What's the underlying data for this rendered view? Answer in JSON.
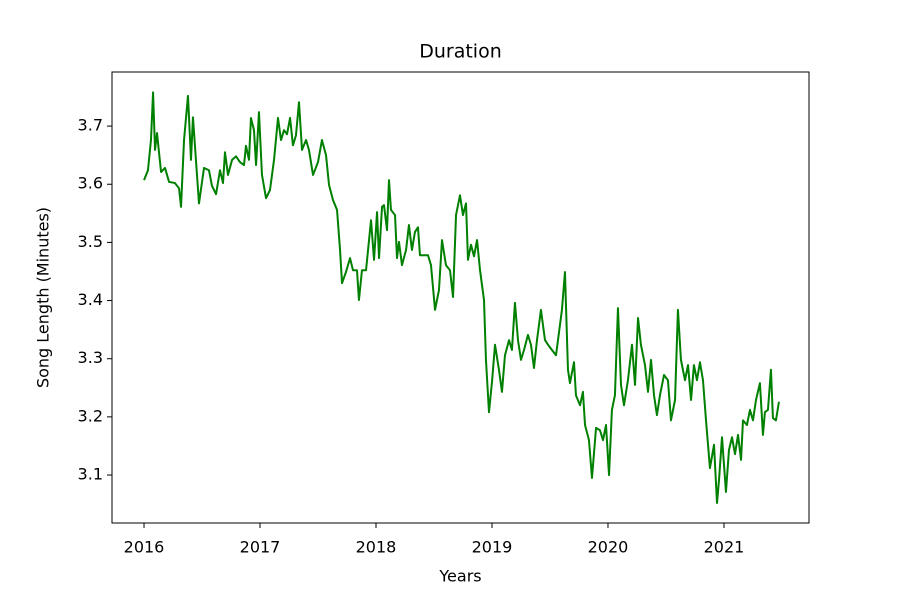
{
  "chart_data": {
    "type": "line",
    "title": "Duration",
    "x_label": "Years",
    "y_label": "Song Length (Minutes)",
    "color": "#008000",
    "x": [
      2016.0,
      2016.034,
      2016.06,
      2016.078,
      2016.095,
      2016.112,
      2016.147,
      2016.181,
      2016.216,
      2016.267,
      2016.302,
      2016.319,
      2016.345,
      2016.379,
      2016.405,
      2016.422,
      2016.474,
      2016.517,
      2016.56,
      2016.586,
      2016.621,
      2016.655,
      2016.681,
      2016.698,
      2016.724,
      2016.759,
      2016.793,
      2016.828,
      2016.862,
      2016.879,
      2016.905,
      2016.922,
      2016.948,
      2016.966,
      2016.991,
      2017.017,
      2017.052,
      2017.086,
      2017.121,
      2017.155,
      2017.181,
      2017.207,
      2017.233,
      2017.259,
      2017.284,
      2017.31,
      2017.336,
      2017.362,
      2017.397,
      2017.422,
      2017.457,
      2017.5,
      2017.534,
      2017.569,
      2017.595,
      2017.629,
      2017.664,
      2017.69,
      2017.707,
      2017.741,
      2017.776,
      2017.802,
      2017.836,
      2017.853,
      2017.879,
      2017.914,
      2017.957,
      2017.983,
      2018.009,
      2018.026,
      2018.052,
      2018.069,
      2018.095,
      2018.112,
      2018.129,
      2018.164,
      2018.181,
      2018.198,
      2018.224,
      2018.259,
      2018.284,
      2018.31,
      2018.336,
      2018.362,
      2018.379,
      2018.414,
      2018.448,
      2018.474,
      2018.509,
      2018.543,
      2018.569,
      2018.603,
      2018.638,
      2018.664,
      2018.69,
      2018.724,
      2018.75,
      2018.776,
      2018.793,
      2018.819,
      2018.845,
      2018.871,
      2018.897,
      2018.931,
      2018.948,
      2018.974,
      2019.0,
      2019.026,
      2019.06,
      2019.086,
      2019.112,
      2019.147,
      2019.172,
      2019.198,
      2019.224,
      2019.25,
      2019.276,
      2019.31,
      2019.336,
      2019.362,
      2019.388,
      2019.422,
      2019.457,
      2019.483,
      2019.517,
      2019.552,
      2019.578,
      2019.603,
      2019.629,
      2019.655,
      2019.672,
      2019.707,
      2019.724,
      2019.759,
      2019.784,
      2019.802,
      2019.836,
      2019.862,
      2019.897,
      2019.931,
      2019.957,
      2019.983,
      2020.009,
      2020.034,
      2020.06,
      2020.086,
      2020.112,
      2020.138,
      2020.172,
      2020.207,
      2020.233,
      2020.259,
      2020.284,
      2020.319,
      2020.345,
      2020.371,
      2020.397,
      2020.422,
      2020.448,
      2020.483,
      2020.517,
      2020.543,
      2020.578,
      2020.603,
      2020.629,
      2020.664,
      2020.69,
      2020.716,
      2020.741,
      2020.767,
      2020.793,
      2020.819,
      2020.845,
      2020.879,
      2020.914,
      2020.94,
      2020.957,
      2020.983,
      2021.017,
      2021.043,
      2021.069,
      2021.095,
      2021.121,
      2021.147,
      2021.164,
      2021.198,
      2021.224,
      2021.25,
      2021.276,
      2021.31,
      2021.336,
      2021.353,
      2021.379,
      2021.405,
      2021.422,
      2021.448,
      2021.474
    ],
    "values": [
      3.607,
      3.624,
      3.676,
      3.758,
      3.659,
      3.688,
      3.621,
      3.628,
      3.604,
      3.602,
      3.593,
      3.561,
      3.676,
      3.752,
      3.642,
      3.715,
      3.567,
      3.628,
      3.624,
      3.597,
      3.583,
      3.624,
      3.602,
      3.655,
      3.616,
      3.642,
      3.648,
      3.638,
      3.633,
      3.666,
      3.642,
      3.714,
      3.693,
      3.633,
      3.724,
      3.616,
      3.576,
      3.59,
      3.642,
      3.714,
      3.676,
      3.693,
      3.686,
      3.714,
      3.667,
      3.684,
      3.741,
      3.659,
      3.676,
      3.659,
      3.616,
      3.638,
      3.676,
      3.65,
      3.599,
      3.573,
      3.556,
      3.487,
      3.43,
      3.449,
      3.473,
      3.452,
      3.452,
      3.401,
      3.452,
      3.452,
      3.538,
      3.47,
      3.552,
      3.473,
      3.561,
      3.564,
      3.521,
      3.607,
      3.556,
      3.547,
      3.473,
      3.501,
      3.461,
      3.487,
      3.53,
      3.487,
      3.518,
      3.526,
      3.478,
      3.478,
      3.478,
      3.461,
      3.384,
      3.418,
      3.504,
      3.461,
      3.452,
      3.406,
      3.547,
      3.581,
      3.547,
      3.567,
      3.47,
      3.496,
      3.476,
      3.504,
      3.452,
      3.401,
      3.298,
      3.208,
      3.26,
      3.324,
      3.281,
      3.243,
      3.306,
      3.332,
      3.315,
      3.396,
      3.332,
      3.298,
      3.315,
      3.341,
      3.324,
      3.284,
      3.332,
      3.384,
      3.332,
      3.324,
      3.315,
      3.306,
      3.346,
      3.384,
      3.449,
      3.281,
      3.258,
      3.294,
      3.237,
      3.22,
      3.243,
      3.186,
      3.16,
      3.095,
      3.181,
      3.177,
      3.16,
      3.186,
      3.1,
      3.212,
      3.237,
      3.387,
      3.255,
      3.22,
      3.263,
      3.324,
      3.255,
      3.37,
      3.324,
      3.289,
      3.243,
      3.298,
      3.237,
      3.203,
      3.237,
      3.272,
      3.263,
      3.194,
      3.229,
      3.384,
      3.298,
      3.263,
      3.289,
      3.229,
      3.289,
      3.263,
      3.294,
      3.263,
      3.194,
      3.112,
      3.152,
      3.052,
      3.091,
      3.165,
      3.071,
      3.143,
      3.165,
      3.136,
      3.169,
      3.126,
      3.194,
      3.186,
      3.212,
      3.194,
      3.229,
      3.258,
      3.169,
      3.208,
      3.212,
      3.281,
      3.198,
      3.194,
      3.226
    ],
    "xlim": [
      2015.724,
      2021.733
    ],
    "ylim": [
      3.0175,
      3.793
    ],
    "xticks": [
      2016,
      2017,
      2018,
      2019,
      2020,
      2021
    ],
    "yticks": [
      3.1,
      3.2,
      3.3,
      3.4,
      3.5,
      3.6,
      3.7
    ]
  }
}
